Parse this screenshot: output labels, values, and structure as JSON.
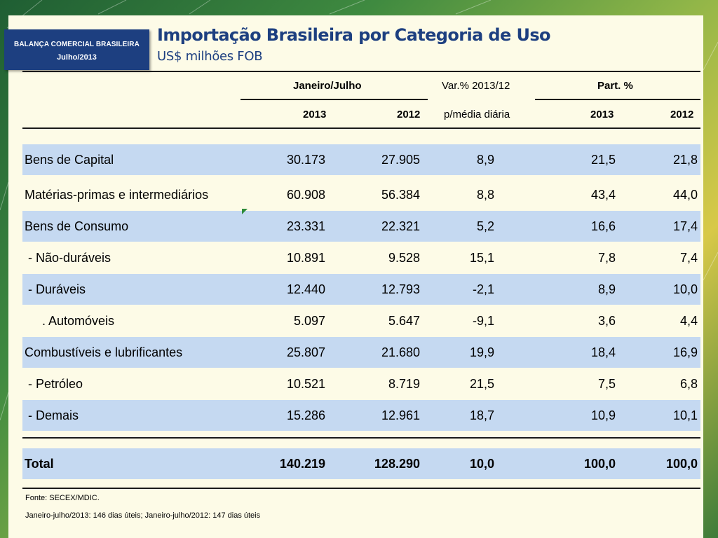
{
  "badge": {
    "line1": "BALANÇA COMERCIAL BRASILEIRA",
    "line2": "Julho/2013"
  },
  "title": "Importação Brasileira por Categoria de Uso",
  "subtitle": "US$ milhões FOB",
  "header": {
    "group_period": "Janeiro/Julho",
    "group_var": "Var.% 2013/12",
    "group_part": "Part. %",
    "col_2013": "2013",
    "col_2012": "2012",
    "col_var": "p/média diária",
    "col_p2013": "2013",
    "col_p2012": "2012"
  },
  "rows": [
    {
      "label": "Bens de Capital",
      "v2013": "30.173",
      "v2012": "27.905",
      "var": "8,9",
      "p2013": "21,5",
      "p2012": "21,8"
    },
    {
      "label": "Matérias-primas e intermediários",
      "v2013": "60.908",
      "v2012": "56.384",
      "var": "8,8",
      "p2013": "43,4",
      "p2012": "44,0"
    },
    {
      "label": "Bens de Consumo",
      "v2013": "23.331",
      "v2012": "22.321",
      "var": "5,2",
      "p2013": "16,6",
      "p2012": "17,4"
    },
    {
      "label": " - Não-duráveis",
      "v2013": "10.891",
      "v2012": "9.528",
      "var": "15,1",
      "p2013": "7,8",
      "p2012": "7,4"
    },
    {
      "label": " - Duráveis",
      "v2013": "12.440",
      "v2012": "12.793",
      "var": "-2,1",
      "p2013": "8,9",
      "p2012": "10,0"
    },
    {
      "label": "     . Automóveis",
      "v2013": "5.097",
      "v2012": "5.647",
      "var": "-9,1",
      "p2013": "3,6",
      "p2012": "4,4"
    },
    {
      "label": "Combustíveis e lubrificantes",
      "v2013": "25.807",
      "v2012": "21.680",
      "var": "19,9",
      "p2013": "18,4",
      "p2012": "16,9"
    },
    {
      "label": " - Petróleo",
      "v2013": "10.521",
      "v2012": "8.719",
      "var": "21,5",
      "p2013": "7,5",
      "p2012": "6,8"
    },
    {
      "label": " - Demais",
      "v2013": "15.286",
      "v2012": "12.961",
      "var": "18,7",
      "p2013": "10,9",
      "p2012": "10,1"
    }
  ],
  "total": {
    "label": "Total",
    "v2013": "140.219",
    "v2012": "128.290",
    "var": "10,0",
    "p2013": "100,0",
    "p2012": "100,0"
  },
  "footnotes": {
    "source": "Fonte: SECEX/MDIC.",
    "days": "Janeiro-julho/2013: 146 dias úteis; Janeiro-julho/2012: 147 dias úteis"
  },
  "colors": {
    "brand": "#1d3f80",
    "band": "#c5d9f1",
    "slide": "#fdfbe7"
  }
}
